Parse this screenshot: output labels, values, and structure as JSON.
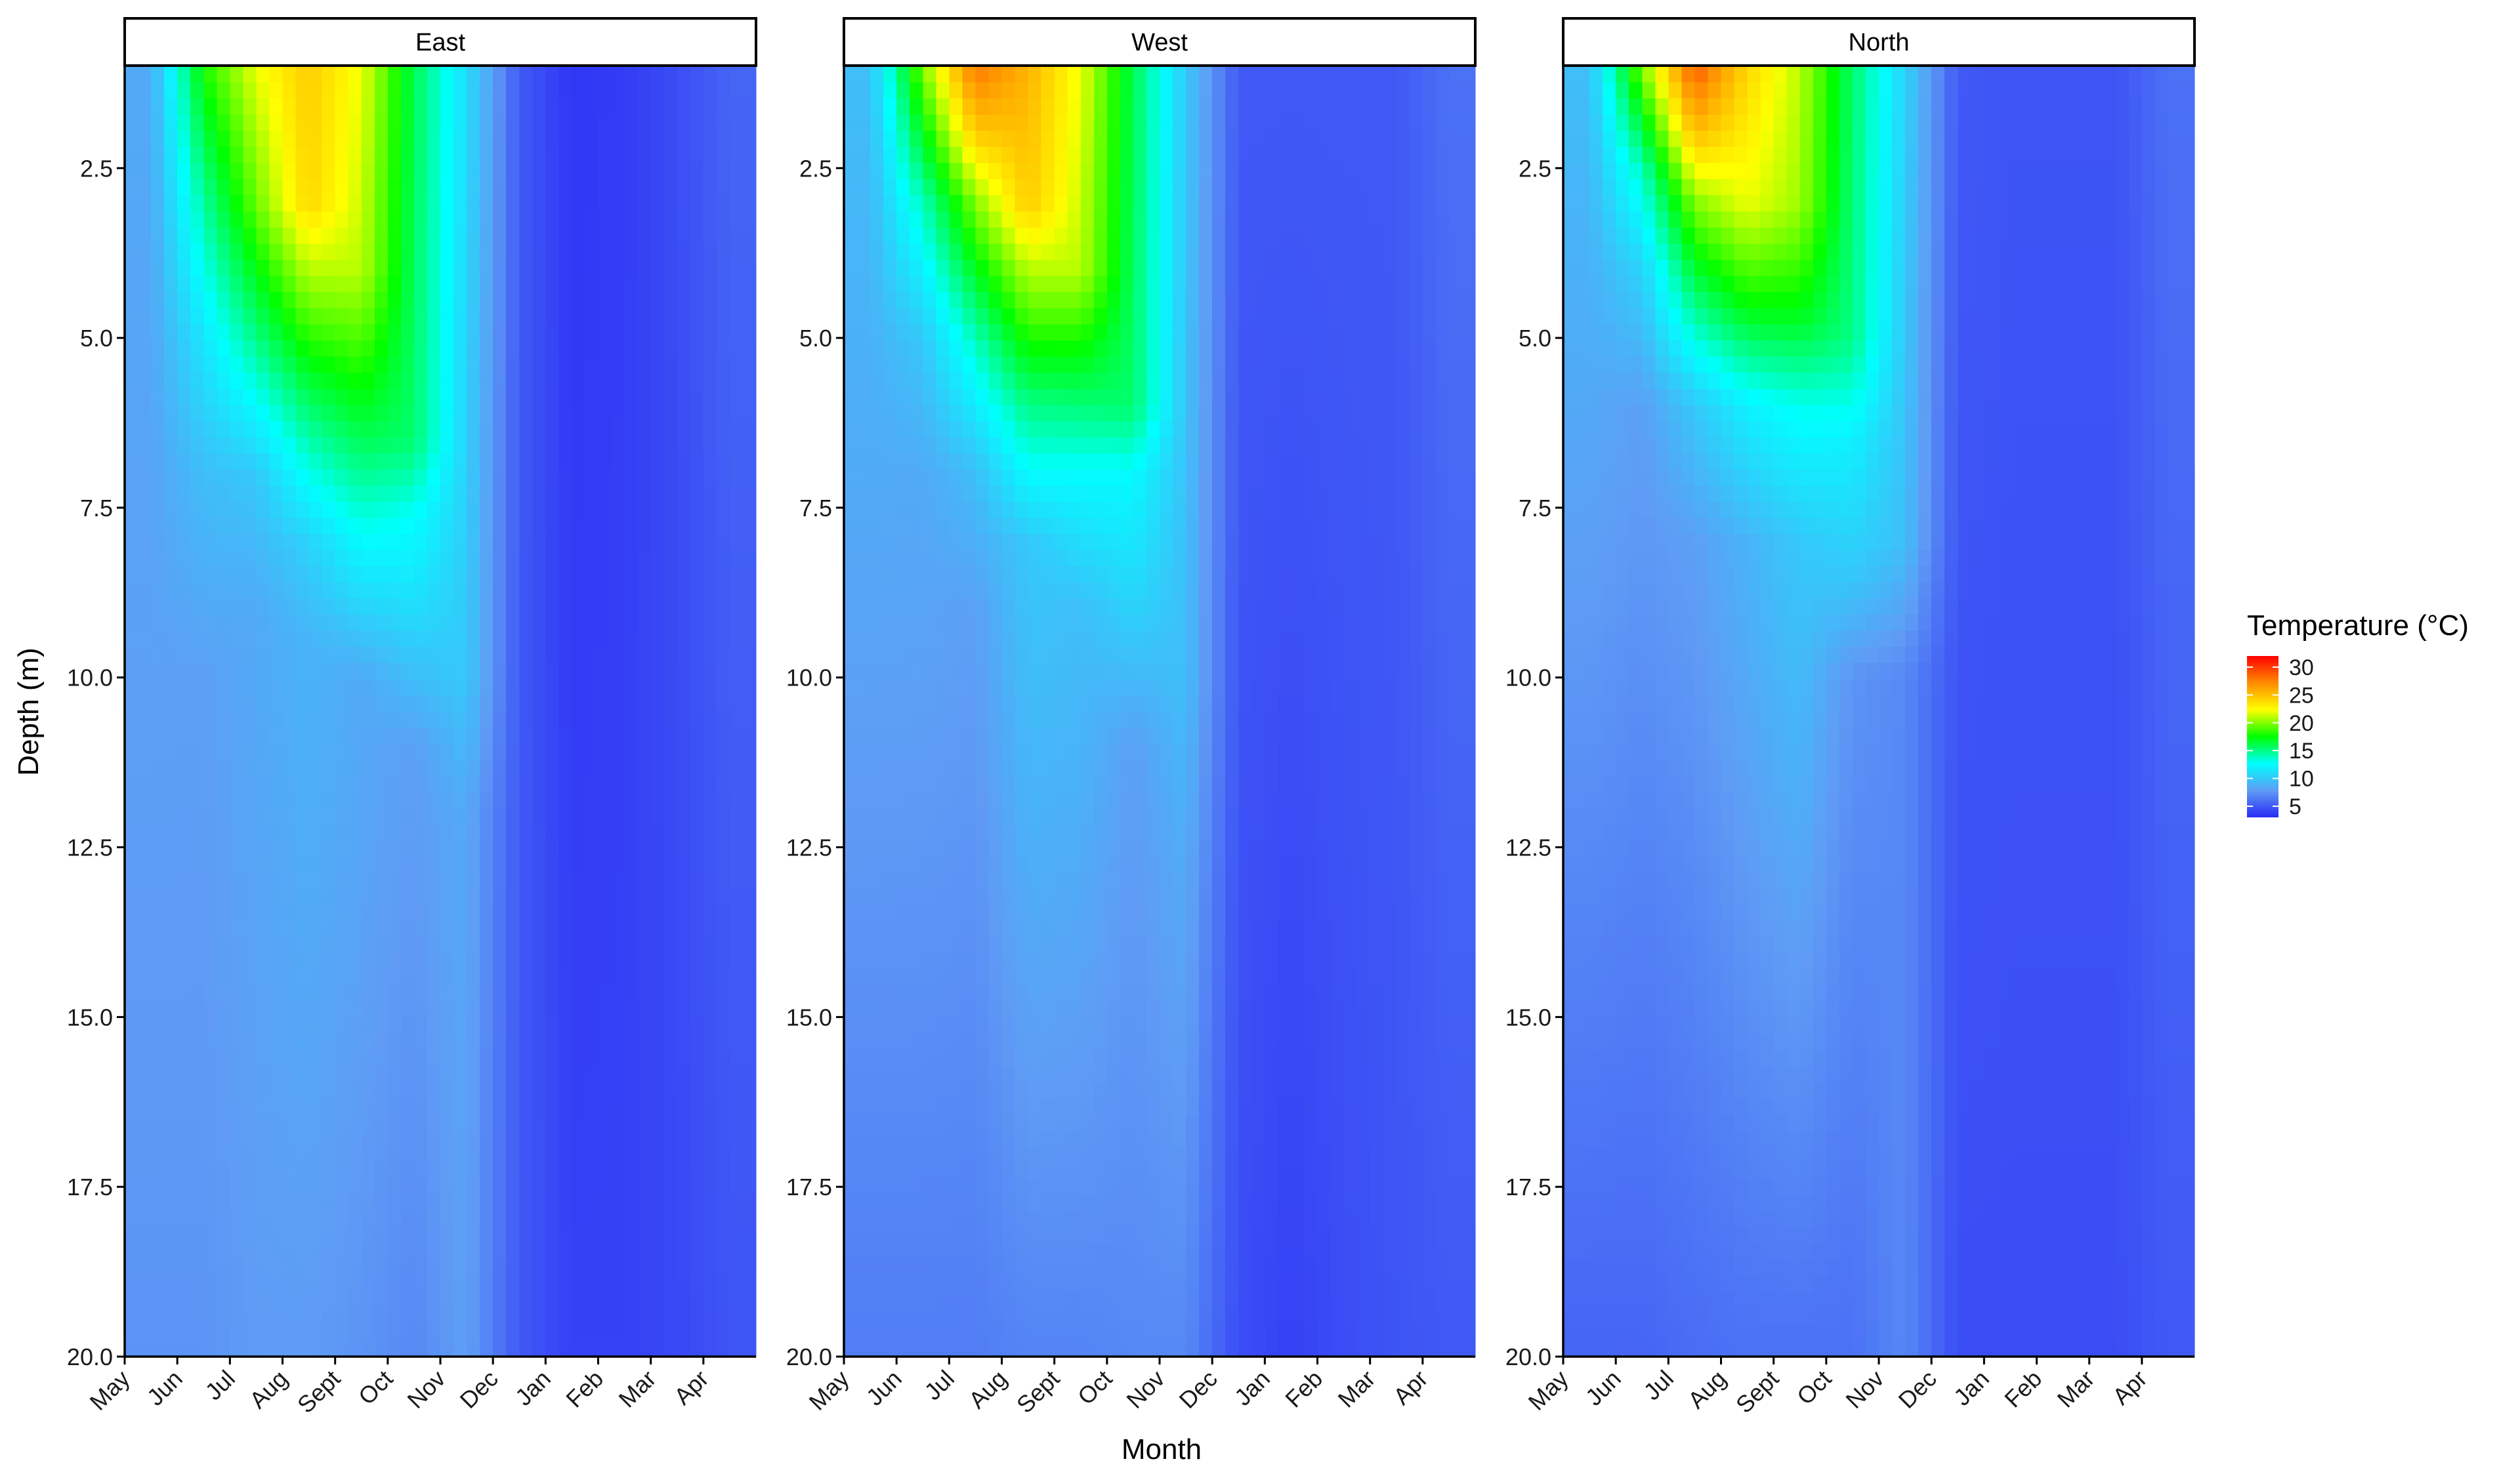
{
  "chart_data": {
    "type": "heatmap",
    "xlabel": "Month",
    "ylabel": "Depth (m)",
    "ylim": [
      1.0,
      20.0
    ],
    "y_reversed": true,
    "y_ticks": [
      2.5,
      5.0,
      7.5,
      10.0,
      12.5,
      15.0,
      17.5,
      20.0
    ],
    "y_tick_labels": [
      "2.5",
      "5.0",
      "7.5",
      "10.0",
      "12.5",
      "15.0",
      "17.5",
      "20.0"
    ],
    "x_tick_labels": [
      "May",
      "Jun",
      "Jul",
      "Aug",
      "Sept",
      "Oct",
      "Nov",
      "Dec",
      "Jan",
      "Feb",
      "Mar",
      "Apr"
    ],
    "legend": {
      "title": "Temperature (°C)",
      "position": "right",
      "ticks": [
        30,
        25,
        20,
        15,
        10,
        5
      ],
      "range": [
        3,
        32
      ],
      "colors": [
        "#2a2af5",
        "#5f9cf5",
        "#00ffff",
        "#00ff00",
        "#ffff00",
        "#ff8c00",
        "#ff0000"
      ]
    },
    "panels": [
      {
        "label": "East",
        "profile": [
          {
            "month": "May",
            "temps": [
              [
                1,
                8.5
              ],
              [
                20,
                7.5
              ]
            ]
          },
          {
            "month": "Jun",
            "temps": [
              [
                1,
                18.0
              ],
              [
                3,
                14.5
              ],
              [
                5,
                11.5
              ],
              [
                7,
                9.5
              ],
              [
                10,
                8.0
              ],
              [
                20,
                7.5
              ]
            ]
          },
          {
            "month": "Jul",
            "temps": [
              [
                1,
                22.0
              ],
              [
                3,
                19.5
              ],
              [
                5,
                15.0
              ],
              [
                7,
                10.0
              ],
              [
                9,
                8.5
              ],
              [
                20,
                7.8
              ]
            ]
          },
          {
            "month": "Aug",
            "temps": [
              [
                1,
                24.5
              ],
              [
                3,
                24.0
              ],
              [
                4,
                21.0
              ],
              [
                6,
                15.5
              ],
              [
                8,
                10.5
              ],
              [
                9.5,
                9.0
              ],
              [
                20,
                7.8
              ]
            ]
          },
          {
            "month": "Sept",
            "temps": [
              [
                1,
                22.0
              ],
              [
                4,
                21.0
              ],
              [
                6,
                17.0
              ],
              [
                8,
                12.5
              ],
              [
                10,
                8.5
              ],
              [
                20,
                7.5
              ]
            ]
          },
          {
            "month": "Oct",
            "temps": [
              [
                1,
                16.0
              ],
              [
                6.5,
                15.5
              ],
              [
                7.5,
                13.0
              ],
              [
                9,
                11.0
              ],
              [
                11,
                8.0
              ],
              [
                20,
                7.0
              ]
            ]
          },
          {
            "month": "Nov",
            "temps": [
              [
                1,
                11.0
              ],
              [
                10,
                10.0
              ],
              [
                12,
                8.5
              ],
              [
                20,
                8.0
              ]
            ]
          },
          {
            "month": "Dec",
            "temps": [
              [
                1,
                5.0
              ],
              [
                20,
                5.0
              ]
            ]
          },
          {
            "month": "Jan",
            "temps": [
              [
                1,
                3.5
              ],
              [
                20,
                4.0
              ]
            ]
          },
          {
            "month": "Feb",
            "temps": [
              [
                1,
                3.8
              ],
              [
                20,
                4.0
              ]
            ]
          },
          {
            "month": "Mar",
            "temps": [
              [
                1,
                4.5
              ],
              [
                20,
                4.3
              ]
            ]
          },
          {
            "month": "Apr",
            "temps": [
              [
                1,
                5.5
              ],
              [
                20,
                4.8
              ]
            ]
          }
        ]
      },
      {
        "label": "West",
        "profile": [
          {
            "month": "May",
            "temps": [
              [
                1,
                9.5
              ],
              [
                20,
                6.5
              ]
            ]
          },
          {
            "month": "Jun",
            "temps": [
              [
                1,
                20.0
              ],
              [
                3,
                14.0
              ],
              [
                5,
                10.0
              ],
              [
                7,
                8.5
              ],
              [
                20,
                6.5
              ]
            ]
          },
          {
            "month": "Jul",
            "temps": [
              [
                1,
                28.0
              ],
              [
                2,
                24.5
              ],
              [
                3,
                20.0
              ],
              [
                5,
                14.0
              ],
              [
                7,
                9.5
              ],
              [
                9,
                8.0
              ],
              [
                20,
                6.5
              ]
            ]
          },
          {
            "month": "Aug",
            "temps": [
              [
                1,
                25.5
              ],
              [
                3,
                24.5
              ],
              [
                4,
                21.0
              ],
              [
                6,
                15.0
              ],
              [
                8,
                10.0
              ],
              [
                20,
                6.8
              ]
            ]
          },
          {
            "month": "Sept",
            "temps": [
              [
                1,
                22.0
              ],
              [
                4,
                21.0
              ],
              [
                5,
                18.0
              ],
              [
                7,
                12.5
              ],
              [
                9,
                9.5
              ],
              [
                20,
                6.8
              ]
            ]
          },
          {
            "month": "Oct",
            "temps": [
              [
                1,
                16.0
              ],
              [
                6,
                15.5
              ],
              [
                7,
                12.5
              ],
              [
                9,
                10.5
              ],
              [
                11,
                8.0
              ],
              [
                20,
                7.0
              ]
            ]
          },
          {
            "month": "Nov",
            "temps": [
              [
                1,
                10.0
              ],
              [
                10,
                9.5
              ],
              [
                13,
                8.5
              ],
              [
                20,
                7.0
              ]
            ]
          },
          {
            "month": "Dec",
            "temps": [
              [
                1,
                5.0
              ],
              [
                20,
                4.5
              ]
            ]
          },
          {
            "month": "Jan",
            "temps": [
              [
                1,
                5.0
              ],
              [
                20,
                4.0
              ]
            ]
          },
          {
            "month": "Feb",
            "temps": [
              [
                1,
                5.0
              ],
              [
                20,
                4.5
              ]
            ]
          },
          {
            "month": "Mar",
            "temps": [
              [
                1,
                5.0
              ],
              [
                20,
                4.8
              ]
            ]
          },
          {
            "month": "Apr",
            "temps": [
              [
                1,
                6.0
              ],
              [
                20,
                5.0
              ]
            ]
          }
        ]
      },
      {
        "label": "North",
        "profile": [
          {
            "month": "May",
            "temps": [
              [
                1,
                9.5
              ],
              [
                20,
                5.5
              ]
            ]
          },
          {
            "month": "Jun",
            "temps": [
              [
                1,
                20.0
              ],
              [
                2.5,
                14.0
              ],
              [
                4,
                10.5
              ],
              [
                6,
                8.0
              ],
              [
                20,
                5.5
              ]
            ]
          },
          {
            "month": "Jul",
            "temps": [
              [
                1,
                29.0
              ],
              [
                2,
                25.0
              ],
              [
                3,
                20.0
              ],
              [
                4.5,
                15.0
              ],
              [
                6,
                10.0
              ],
              [
                8,
                8.0
              ],
              [
                20,
                5.8
              ]
            ]
          },
          {
            "month": "Aug",
            "temps": [
              [
                1,
                24.0
              ],
              [
                3,
                22.0
              ],
              [
                4.5,
                17.5
              ],
              [
                6,
                12.0
              ],
              [
                8,
                9.0
              ],
              [
                20,
                6.0
              ]
            ]
          },
          {
            "month": "Sept",
            "temps": [
              [
                1,
                21.0
              ],
              [
                3,
                20.5
              ],
              [
                4.7,
                17.0
              ],
              [
                6,
                13.0
              ],
              [
                8,
                10.0
              ],
              [
                20,
                6.0
              ]
            ]
          },
          {
            "month": "Oct",
            "temps": [
              [
                1,
                15.5
              ],
              [
                5,
                15.0
              ],
              [
                6.5,
                12.0
              ],
              [
                8.5,
                10.0
              ],
              [
                10,
                7.5
              ],
              [
                20,
                6.0
              ]
            ]
          },
          {
            "month": "Nov",
            "temps": [
              [
                1,
                10.5
              ],
              [
                8,
                9.5
              ],
              [
                10,
                7.0
              ],
              [
                20,
                7.0
              ]
            ]
          },
          {
            "month": "Dec",
            "temps": [
              [
                1,
                5.0
              ],
              [
                20,
                4.5
              ]
            ]
          },
          {
            "month": "Jan",
            "temps": [
              [
                1,
                4.8
              ],
              [
                20,
                4.5
              ]
            ]
          },
          {
            "month": "Feb",
            "temps": [
              [
                1,
                4.8
              ],
              [
                20,
                4.5
              ]
            ]
          },
          {
            "month": "Mar",
            "temps": [
              [
                1,
                4.8
              ],
              [
                20,
                4.5
              ]
            ]
          },
          {
            "month": "Apr",
            "temps": [
              [
                1,
                6.0
              ],
              [
                20,
                5.0
              ]
            ]
          }
        ]
      }
    ]
  }
}
